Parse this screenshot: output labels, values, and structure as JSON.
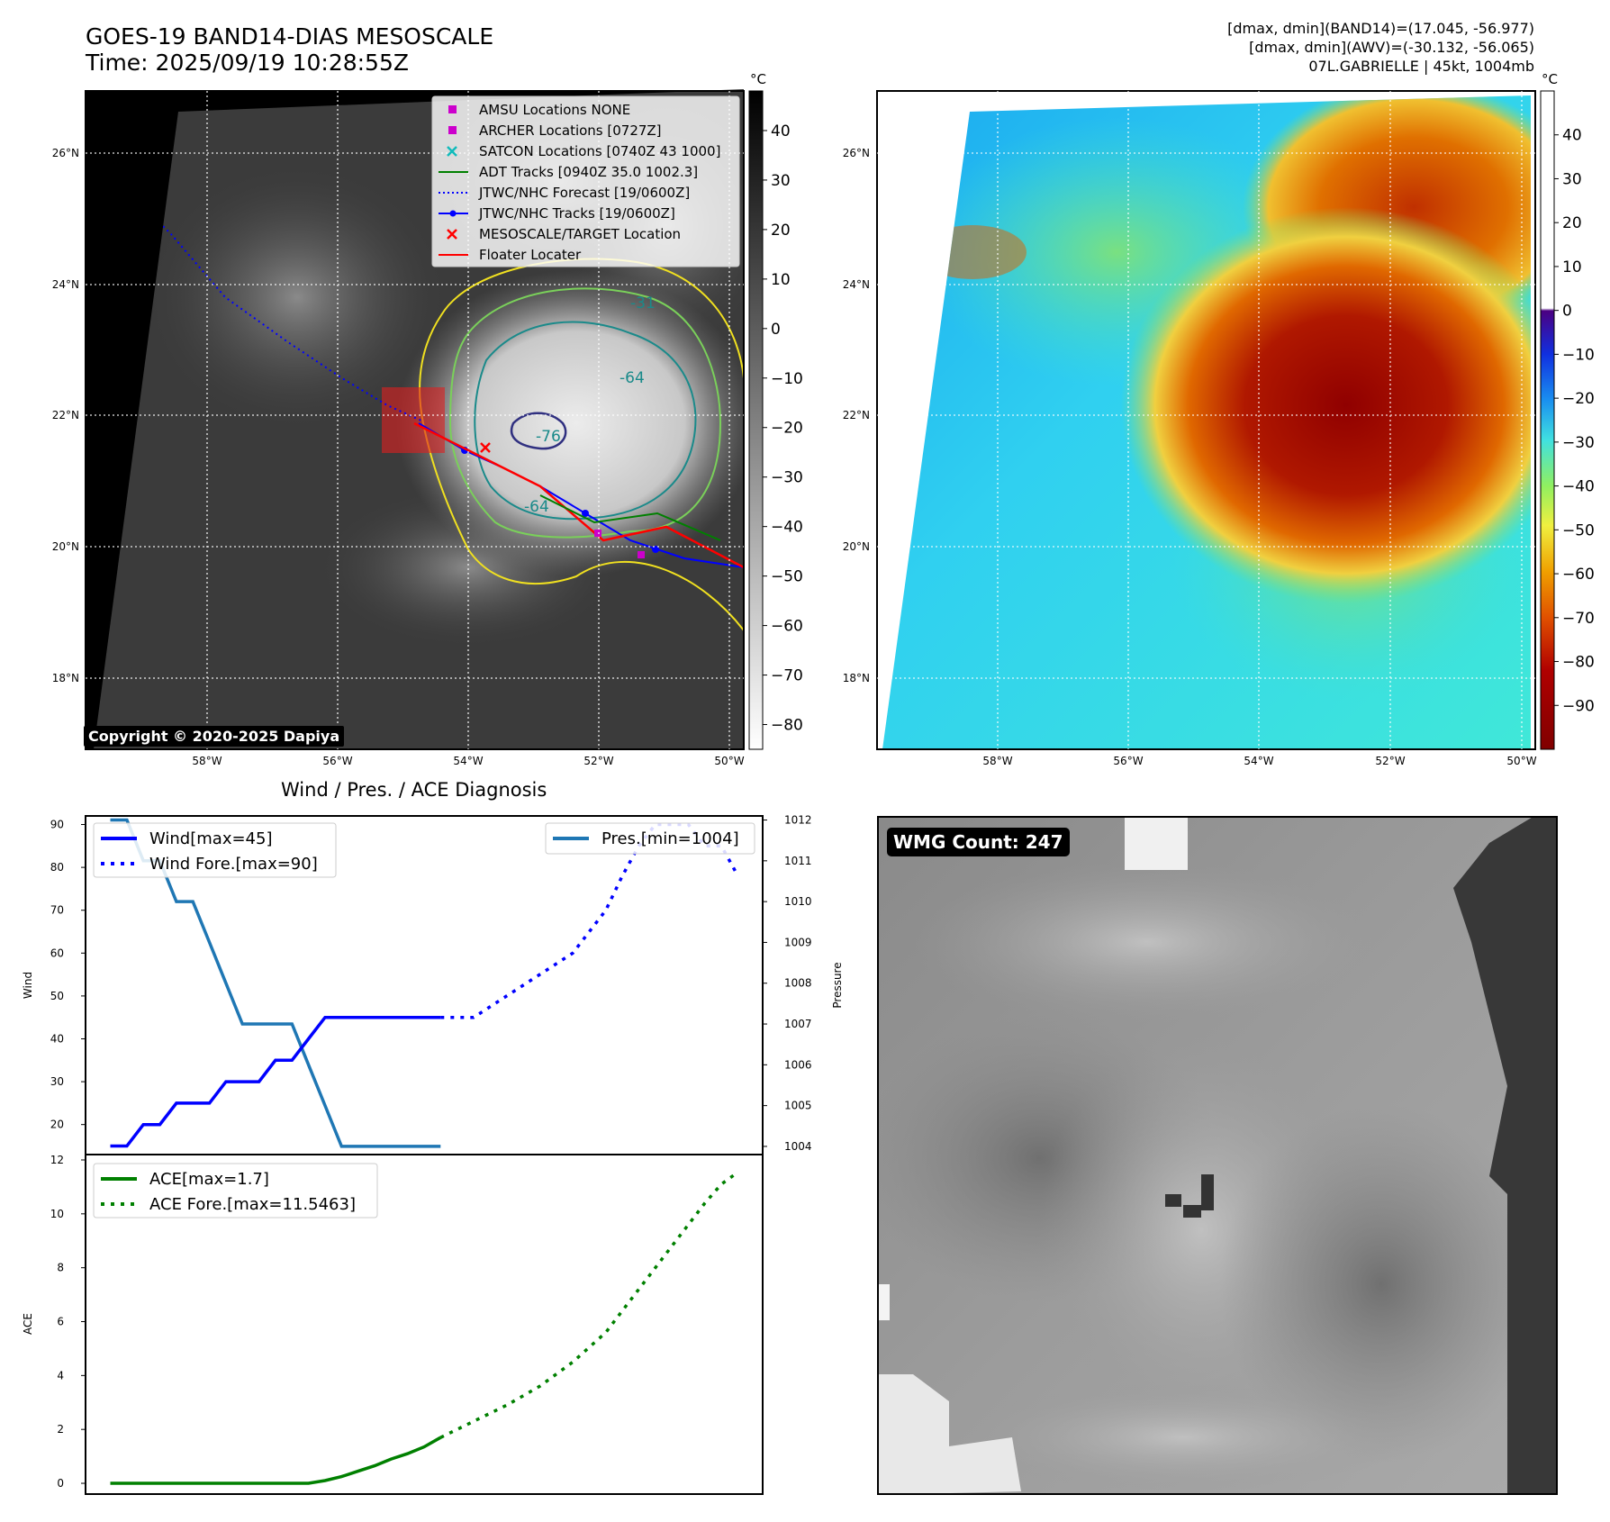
{
  "header": {
    "title_line1": "GOES-19 BAND14-DIAS MESOSCALE",
    "title_line2": "Time: 2025/09/19 10:28:55Z",
    "info_line1": "[dmax, dmin](BAND14)=(17.045, -56.977)",
    "info_line2": "[dmax, dmin](AWV)=(-30.132, -56.065)",
    "info_line3": "07L.GABRIELLE | 45kt, 1004mb"
  },
  "map_axes": {
    "lon_labels": [
      "58°W",
      "56°W",
      "54°W",
      "52°W",
      "50°W"
    ],
    "lat_labels": [
      "26°N",
      "24°N",
      "22°N",
      "20°N",
      "18°N"
    ]
  },
  "panel_ir": {
    "copyright": "Copyright © 2020-2025 Dapiya",
    "contour_labels": [
      "-31",
      "-64",
      "-76",
      "-64"
    ],
    "colorbar": {
      "unit": "°C",
      "ticks": [
        "40",
        "30",
        "20",
        "10",
        "0",
        "−10",
        "−20",
        "−30",
        "−40",
        "−50",
        "−60",
        "−70",
        "−80"
      ],
      "range": [
        -85,
        48
      ]
    },
    "legend": [
      {
        "label": "AMSU Locations NONE",
        "marker": "square",
        "color": "#cc00cc"
      },
      {
        "label": "ARCHER Locations [0727Z]",
        "marker": "square",
        "color": "#cc00cc"
      },
      {
        "label": "SATCON Locations [0740Z 43 1000]",
        "marker": "x",
        "color": "#11bbbb"
      },
      {
        "label": "ADT Tracks [0940Z 35.0 1002.3]",
        "marker": "line",
        "color": "#008000"
      },
      {
        "label": "JTWC/NHC Forecast [19/0600Z]",
        "marker": "dotted",
        "color": "#0000ff"
      },
      {
        "label": "JTWC/NHC Tracks [19/0600Z]",
        "marker": "line-dot",
        "color": "#0000ff"
      },
      {
        "label": "MESOSCALE/TARGET Location",
        "marker": "x",
        "color": "#ff0000"
      },
      {
        "label": "Floater Locater",
        "marker": "line",
        "color": "#ff0000"
      }
    ]
  },
  "panel_awv": {
    "colorbar": {
      "unit": "°C",
      "ticks": [
        "40",
        "30",
        "20",
        "10",
        "0",
        "−10",
        "−20",
        "−30",
        "−40",
        "−50",
        "−60",
        "−70",
        "−80",
        "−90"
      ],
      "range": [
        -100,
        50
      ]
    }
  },
  "panel_wmg": {
    "count_label": "WMG Count: 247"
  },
  "chart_data": [
    {
      "type": "line",
      "title": "Wind / Pres. / ACE Diagnosis",
      "ylabel": "Wind",
      "y2label": "Pressure",
      "ylim": [
        13,
        92
      ],
      "y2lim": [
        1003.8,
        1012.1
      ],
      "yticks": [
        20,
        30,
        40,
        50,
        60,
        70,
        80,
        90
      ],
      "y2ticks": [
        1004,
        1005,
        1006,
        1007,
        1008,
        1009,
        1010,
        1011,
        1012
      ],
      "xlim": [
        -1.5,
        39.5
      ],
      "legend_left": [
        "Wind[max=45]",
        "Wind Fore.[max=90]"
      ],
      "legend_right": [
        "Pres.[min=1004]"
      ],
      "series": [
        {
          "name": "Wind[max=45]",
          "axis": "left",
          "color": "#0000ff",
          "style": "solid",
          "x": [
            0,
            1,
            2,
            3,
            4,
            5,
            6,
            7,
            8,
            9,
            10,
            11,
            12,
            13,
            14,
            15,
            16,
            17,
            18,
            19,
            20
          ],
          "values": [
            15,
            15,
            20,
            20,
            25,
            25,
            25,
            30,
            30,
            30,
            35,
            35,
            40,
            45,
            45,
            45,
            45,
            45,
            45,
            45,
            45
          ]
        },
        {
          "name": "Wind Fore.[max=90]",
          "axis": "left",
          "color": "#0000ff",
          "style": "dotted",
          "x": [
            20,
            21,
            22,
            24,
            26,
            28,
            30,
            31,
            32,
            33,
            34,
            35,
            36,
            37,
            38
          ],
          "values": [
            45,
            45,
            45,
            50,
            55,
            60,
            70,
            78,
            85,
            90,
            90,
            90,
            85,
            85,
            78
          ]
        },
        {
          "name": "Pres.[min=1004]",
          "axis": "right",
          "color": "#1f77b4",
          "style": "solid",
          "x": [
            0,
            1,
            2,
            3,
            4,
            5,
            6,
            7,
            8,
            9,
            10,
            11,
            12,
            13,
            14,
            15,
            16,
            17,
            18,
            19,
            20
          ],
          "values": [
            1012,
            1012,
            1011,
            1011,
            1010,
            1010,
            1009,
            1008,
            1007,
            1007,
            1007,
            1007,
            1006,
            1005,
            1004,
            1004,
            1004,
            1004,
            1004,
            1004,
            1004
          ]
        }
      ]
    },
    {
      "type": "line",
      "ylabel": "ACE",
      "ylim": [
        -0.4,
        12.2
      ],
      "yticks": [
        0,
        2,
        4,
        6,
        8,
        10,
        12
      ],
      "xlim": [
        -1.5,
        39.5
      ],
      "legend": [
        "ACE[max=1.7]",
        "ACE Fore.[max=11.5463]"
      ],
      "series": [
        {
          "name": "ACE[max=1.7]",
          "color": "#008000",
          "style": "solid",
          "x": [
            0,
            2,
            4,
            6,
            8,
            10,
            12,
            13,
            14,
            15,
            16,
            17,
            18,
            19,
            20
          ],
          "values": [
            0,
            0,
            0,
            0,
            0,
            0,
            0,
            0.1,
            0.25,
            0.45,
            0.65,
            0.9,
            1.1,
            1.35,
            1.7
          ]
        },
        {
          "name": "ACE Fore.[max=11.5463]",
          "color": "#008000",
          "style": "dotted",
          "x": [
            20,
            22,
            24,
            26,
            28,
            30,
            31,
            32,
            33,
            34,
            35,
            36,
            37,
            38
          ],
          "values": [
            1.7,
            2.3,
            2.9,
            3.6,
            4.5,
            5.6,
            6.4,
            7.2,
            8.0,
            8.8,
            9.6,
            10.4,
            11.1,
            11.5463
          ]
        }
      ]
    }
  ]
}
